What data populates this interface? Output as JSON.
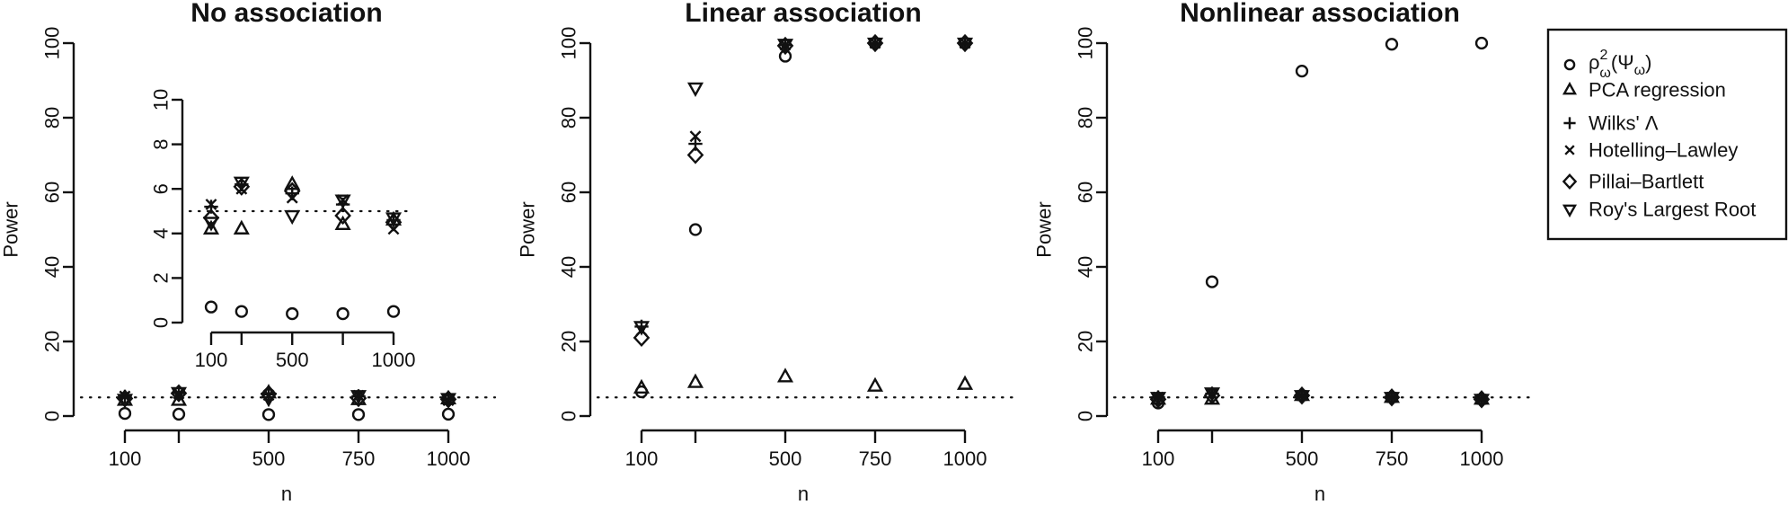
{
  "chart_data": [
    {
      "type": "scatter",
      "title": "No association",
      "xlabel": "n",
      "ylabel": "Power",
      "x": [
        100,
        250,
        500,
        750,
        1000
      ],
      "xticks": [
        "100",
        "",
        "500",
        "750",
        "1000"
      ],
      "xtick_values": [
        100,
        250,
        500,
        750,
        1000
      ],
      "ylim": [
        0,
        100
      ],
      "yticks": [
        "0",
        "20",
        "40",
        "60",
        "80",
        "100"
      ],
      "reference_line": 5,
      "series": [
        {
          "name": "rho",
          "marker": "circle",
          "values": [
            0.7,
            0.5,
            0.4,
            0.4,
            0.5
          ]
        },
        {
          "name": "PCA regression",
          "marker": "triangle",
          "values": [
            4.2,
            4.2,
            6.2,
            4.4,
            4.6
          ]
        },
        {
          "name": "Wilks' Λ",
          "marker": "plus",
          "values": [
            5.2,
            6.2,
            5.8,
            5.3,
            4.6
          ]
        },
        {
          "name": "Hotelling–Lawley",
          "marker": "x",
          "values": [
            5.3,
            6.0,
            5.6,
            5.5,
            4.2
          ]
        },
        {
          "name": "Pillai–Bartlett",
          "marker": "diamond",
          "values": [
            4.7,
            6.1,
            5.9,
            4.8,
            4.5
          ]
        },
        {
          "name": "Roy's Largest Root",
          "marker": "inv-triangle",
          "values": [
            4.5,
            6.3,
            4.8,
            5.5,
            4.7
          ]
        }
      ],
      "inset": {
        "ylim": [
          0,
          10
        ],
        "yticks": [
          "0",
          "2",
          "4",
          "6",
          "8",
          "10"
        ],
        "xticks": [
          "100",
          "",
          "500",
          "",
          "1000"
        ],
        "xtick_values": [
          100,
          250,
          500,
          750,
          1000
        ]
      }
    },
    {
      "type": "scatter",
      "title": "Linear association",
      "xlabel": "n",
      "ylabel": "Power",
      "x": [
        100,
        250,
        500,
        750,
        1000
      ],
      "xticks": [
        "100",
        "",
        "500",
        "750",
        "1000"
      ],
      "xtick_values": [
        100,
        250,
        500,
        750,
        1000
      ],
      "ylim": [
        0,
        100
      ],
      "yticks": [
        "0",
        "20",
        "40",
        "60",
        "80",
        "100"
      ],
      "reference_line": 5,
      "series": [
        {
          "name": "rho",
          "marker": "circle",
          "values": [
            6.5,
            50,
            96.5,
            100,
            100
          ]
        },
        {
          "name": "PCA regression",
          "marker": "triangle",
          "values": [
            7.5,
            9,
            10.5,
            8,
            8.5
          ]
        },
        {
          "name": "Wilks' Λ",
          "marker": "plus",
          "values": [
            24,
            73,
            99.5,
            100,
            100
          ]
        },
        {
          "name": "Hotelling–Lawley",
          "marker": "x",
          "values": [
            23,
            75,
            99.5,
            100,
            100
          ]
        },
        {
          "name": "Pillai–Bartlett",
          "marker": "diamond",
          "values": [
            21,
            70,
            99.3,
            100,
            100
          ]
        },
        {
          "name": "Roy's Largest Root",
          "marker": "inv-triangle",
          "values": [
            24,
            88,
            99.7,
            100,
            100
          ]
        }
      ]
    },
    {
      "type": "scatter",
      "title": "Nonlinear association",
      "xlabel": "n",
      "ylabel": "Power",
      "x": [
        100,
        250,
        500,
        750,
        1000
      ],
      "xticks": [
        "100",
        "",
        "500",
        "750",
        "1000"
      ],
      "xtick_values": [
        100,
        250,
        500,
        750,
        1000
      ],
      "ylim": [
        0,
        100
      ],
      "yticks": [
        "0",
        "20",
        "40",
        "60",
        "80",
        "100"
      ],
      "reference_line": 5,
      "series": [
        {
          "name": "rho",
          "marker": "circle",
          "values": [
            3.5,
            36,
            92.5,
            99.7,
            100
          ]
        },
        {
          "name": "PCA regression",
          "marker": "triangle",
          "values": [
            4.5,
            4.5,
            5.5,
            5,
            4.5
          ]
        },
        {
          "name": "Wilks' Λ",
          "marker": "plus",
          "values": [
            5,
            6,
            5.5,
            5,
            4.5
          ]
        },
        {
          "name": "Hotelling–Lawley",
          "marker": "x",
          "values": [
            5,
            6,
            5.5,
            5,
            4.5
          ]
        },
        {
          "name": "Pillai–Bartlett",
          "marker": "diamond",
          "values": [
            4.5,
            5.5,
            5.5,
            5,
            4.5
          ]
        },
        {
          "name": "Roy's Largest Root",
          "marker": "inv-triangle",
          "values": [
            5,
            6.2,
            5.5,
            5,
            4.5
          ]
        }
      ]
    }
  ],
  "legend": {
    "placement": "right",
    "items": [
      {
        "marker": "circle",
        "label_main": "ρ",
        "label_sup": "2",
        "label_sub": "ω",
        "label_rest": "(Ψ",
        "label_sub2": "ω",
        "label_close": ")"
      },
      {
        "marker": "triangle",
        "label": "PCA regression"
      },
      {
        "marker": "plus",
        "label": "Wilks' Λ"
      },
      {
        "marker": "x",
        "label": "Hotelling–Lawley"
      },
      {
        "marker": "diamond",
        "label": "Pillai–Bartlett"
      },
      {
        "marker": "inv-triangle",
        "label": "Roy's Largest Root"
      }
    ]
  },
  "colors": {
    "ink": "#111111",
    "background": "#ffffff"
  }
}
